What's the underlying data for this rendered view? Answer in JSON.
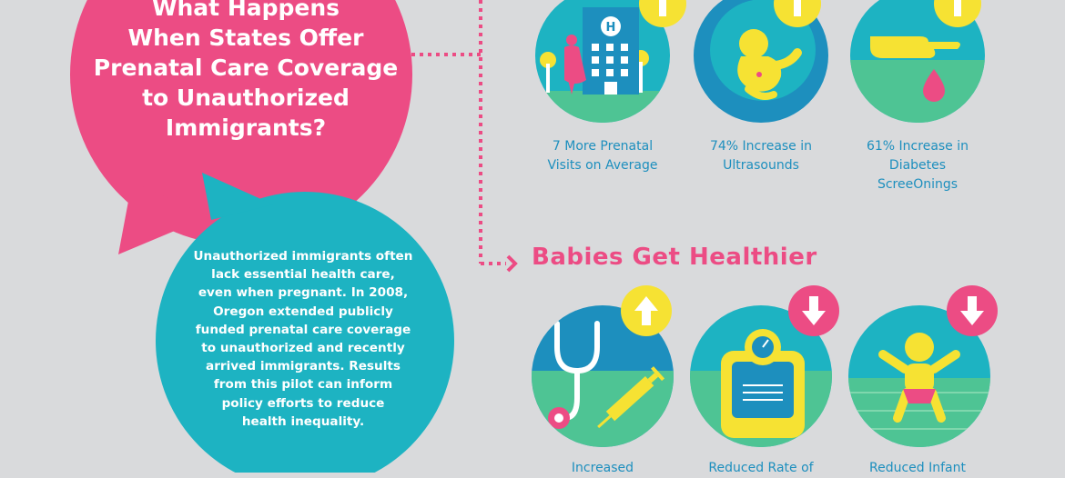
{
  "main_question": {
    "line1": "What Happens",
    "line2": "When States Offer",
    "line3": "Prenatal Care Coverage",
    "line4": "to Unauthorized",
    "line5": "Immigrants?"
  },
  "intro": {
    "line1": "Unauthorized immigrants often",
    "line2": "lack essential health care,",
    "line3": "even when pregnant. In 2008,",
    "line4": "Oregon extended publicly",
    "line5": "funded prenatal care coverage",
    "line6": "to unauthorized and recently",
    "line7": "arrived immigrants. Results",
    "line8": "from this pilot can inform",
    "line9": "policy efforts to reduce",
    "line10": "health inequality."
  },
  "section_babies": {
    "title": "Babies Get Healthier"
  },
  "care_stats": [
    {
      "line1": "7 More Prenatal",
      "line2": "Visits on Average",
      "icon": "hospital-icon",
      "trend": "up"
    },
    {
      "line1": "74% Increase in",
      "line2": "Ultrasounds",
      "icon": "fetus-icon",
      "trend": "up"
    },
    {
      "line1": "61% Increase in",
      "line2": "Diabetes",
      "line3": "ScreeOnings",
      "icon": "finger-prick-icon",
      "trend": "up"
    }
  ],
  "baby_stats": [
    {
      "line1": "Increased",
      "icon": "stethoscope-icon",
      "trend": "up"
    },
    {
      "line1": "Reduced Rate of",
      "icon": "scale-icon",
      "trend": "down"
    },
    {
      "line1": "Reduced Infant",
      "icon": "baby-icon",
      "trend": "down"
    }
  ],
  "colors": {
    "pink": "#ec4c84",
    "teal": "#1db3c2",
    "blue": "#1d8fbe",
    "yellow": "#f6e233",
    "green": "#4ec494",
    "background": "#d9dadc"
  }
}
